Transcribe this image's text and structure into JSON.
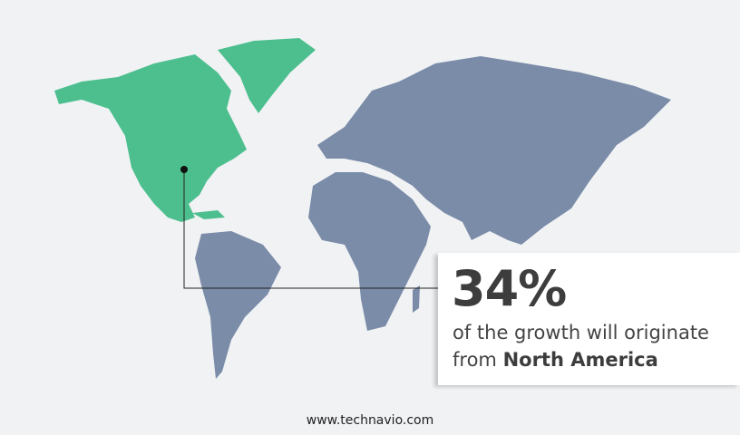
{
  "map": {
    "highlighted_region": "North America",
    "highlight_color": "#4dbf8f",
    "other_color": "#7a8ca8",
    "background_color": "#f1f2f4"
  },
  "callout": {
    "value": "34%",
    "text_line1": "of the growth will originate",
    "text_prefix": "from",
    "region": "North America"
  },
  "footer": {
    "website": "www.technavio.com"
  }
}
